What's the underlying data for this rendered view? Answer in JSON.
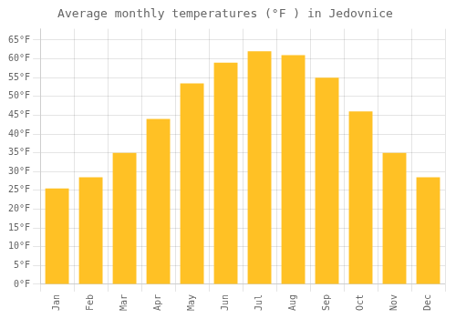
{
  "chart_data": {
    "type": "bar",
    "title": "Average monthly temperatures (°F ) in Jedovnice",
    "categories": [
      "Jan",
      "Feb",
      "Mar",
      "Apr",
      "May",
      "Jun",
      "Jul",
      "Aug",
      "Sep",
      "Oct",
      "Nov",
      "Dec"
    ],
    "values": [
      25.5,
      28.5,
      35.0,
      44.0,
      53.5,
      59.0,
      62.0,
      61.0,
      55.0,
      46.0,
      35.0,
      28.5
    ],
    "color": "#FFC125",
    "ylim": [
      0,
      68
    ],
    "yticks": [
      {
        "value": 0,
        "label": "0°F"
      },
      {
        "value": 5,
        "label": "5°F"
      },
      {
        "value": 10,
        "label": "10°F"
      },
      {
        "value": 15,
        "label": "15°F"
      },
      {
        "value": 20,
        "label": "20°F"
      },
      {
        "value": 25,
        "label": "25°F"
      },
      {
        "value": 30,
        "label": "30°F"
      },
      {
        "value": 35,
        "label": "35°F"
      },
      {
        "value": 40,
        "label": "40°F"
      },
      {
        "value": 45,
        "label": "45°F"
      },
      {
        "value": 50,
        "label": "50°F"
      },
      {
        "value": 55,
        "label": "55°F"
      },
      {
        "value": 60,
        "label": "60°F"
      },
      {
        "value": 65,
        "label": "65°F"
      }
    ],
    "grid": true
  }
}
